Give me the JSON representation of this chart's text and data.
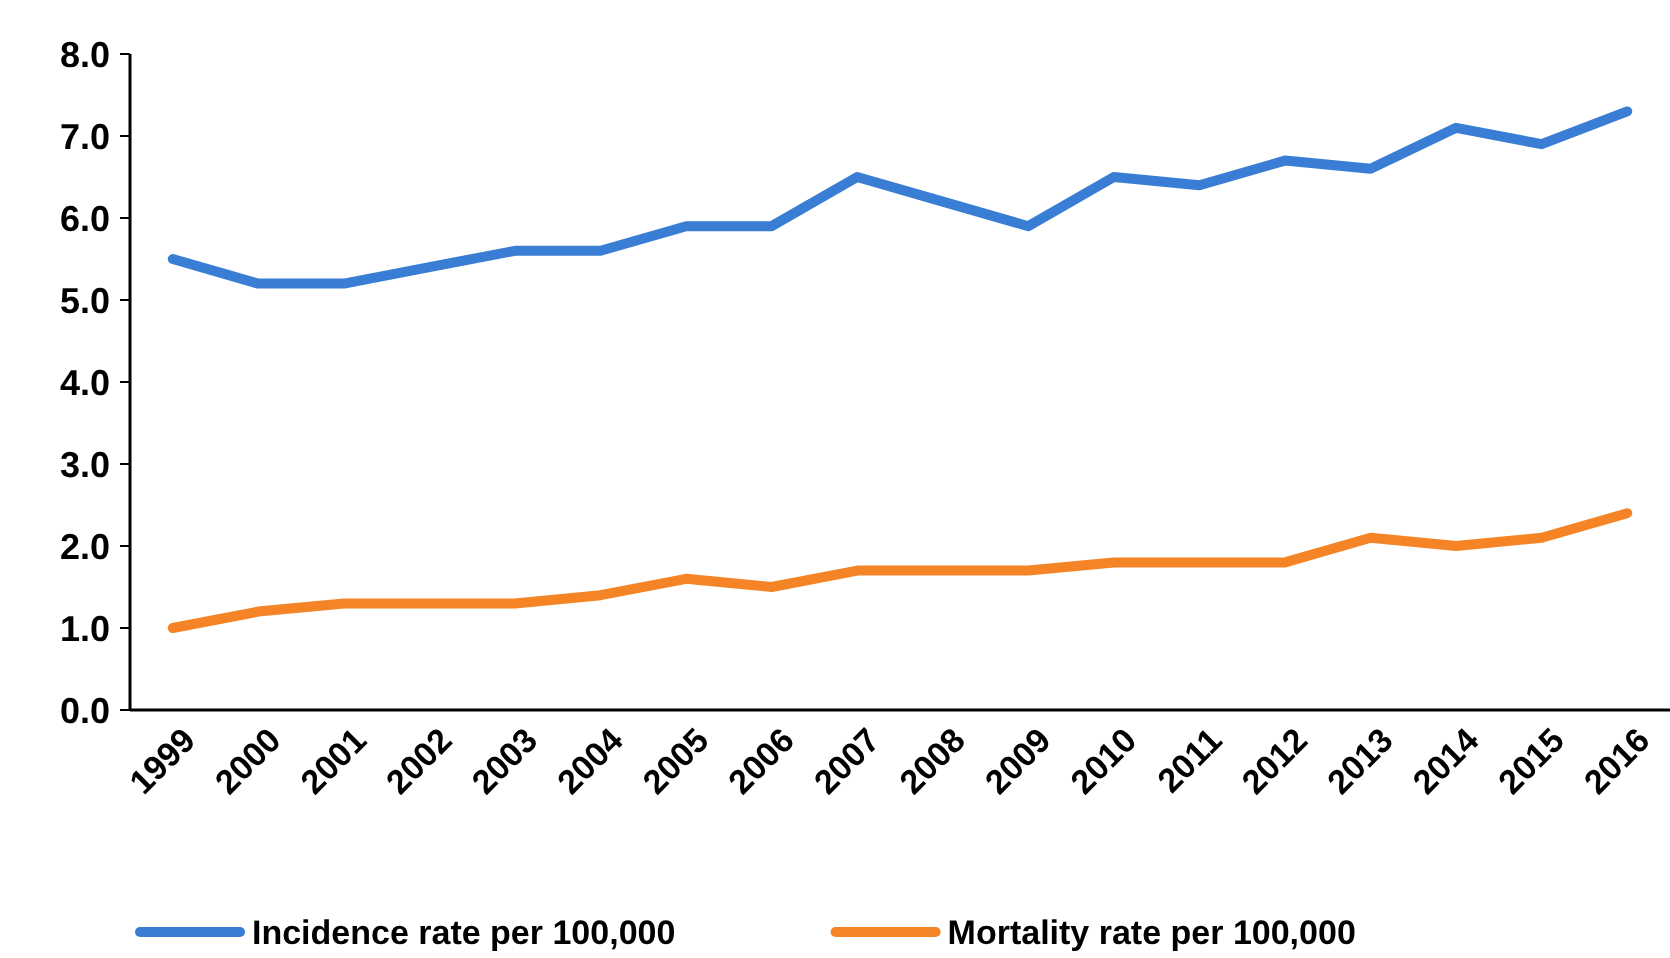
{
  "chart_data": {
    "type": "line",
    "categories": [
      "1999",
      "2000",
      "2001",
      "2002",
      "2003",
      "2004",
      "2005",
      "2006",
      "2007",
      "2008",
      "2009",
      "2010",
      "2011",
      "2012",
      "2013",
      "2014",
      "2015",
      "2016"
    ],
    "series": [
      {
        "name": "Incidence rate per 100,000",
        "color": "#3a7dd4",
        "values": [
          5.5,
          5.2,
          5.2,
          5.4,
          5.6,
          5.6,
          5.9,
          5.9,
          6.5,
          6.2,
          5.9,
          6.5,
          6.4,
          6.7,
          6.6,
          7.1,
          6.9,
          7.3
        ]
      },
      {
        "name": "Mortality rate per 100,000",
        "color": "#f58426",
        "values": [
          1.0,
          1.2,
          1.3,
          1.3,
          1.3,
          1.4,
          1.6,
          1.5,
          1.7,
          1.7,
          1.7,
          1.8,
          1.8,
          1.8,
          2.1,
          2.0,
          2.1,
          2.4
        ]
      }
    ],
    "ylim": [
      0,
      8
    ],
    "yticks": [
      {
        "value": 0,
        "label": "0.0"
      },
      {
        "value": 1,
        "label": "1.0"
      },
      {
        "value": 2,
        "label": "2.0"
      },
      {
        "value": 3,
        "label": "3.0"
      },
      {
        "value": 4,
        "label": "4.0"
      },
      {
        "value": 5,
        "label": "5.0"
      },
      {
        "value": 6,
        "label": "6.0"
      },
      {
        "value": 7,
        "label": "7.0"
      },
      {
        "value": 8,
        "label": "8.0"
      }
    ],
    "grid": false,
    "legend": "bottom",
    "marker": "none",
    "line_style": "solid"
  }
}
